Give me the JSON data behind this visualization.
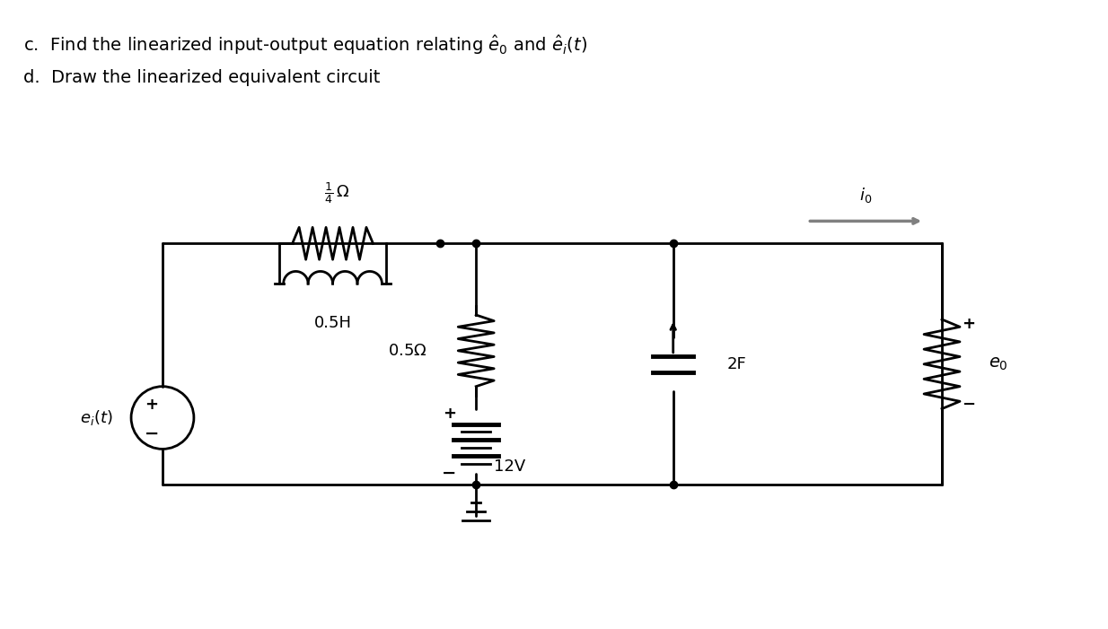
{
  "title_line1": "c.  Find the linearized input-output equation relating $\\hat{e}_0$ and $\\hat{e}_i(t)$",
  "title_line2": "d.  Draw the linearized equivalent circuit",
  "background_color": "#ffffff",
  "line_color": "#000000",
  "component_color": "#000000",
  "arrow_color": "#808080",
  "labels": {
    "resistor_top": "$\\frac{1}{4}\\,\\Omega$",
    "inductor": "0.5H",
    "resistor_mid": "$0.5\\Omega$",
    "battery": "12V",
    "capacitor": "2F",
    "current": "$i_0$",
    "source_label": "$e_i(t)$",
    "output_label": "$e_0$",
    "plus_source": "+",
    "minus_source": "−",
    "plus_output": "+",
    "minus_output": "−",
    "plus_battery": "+",
    "minus_battery": "−"
  }
}
